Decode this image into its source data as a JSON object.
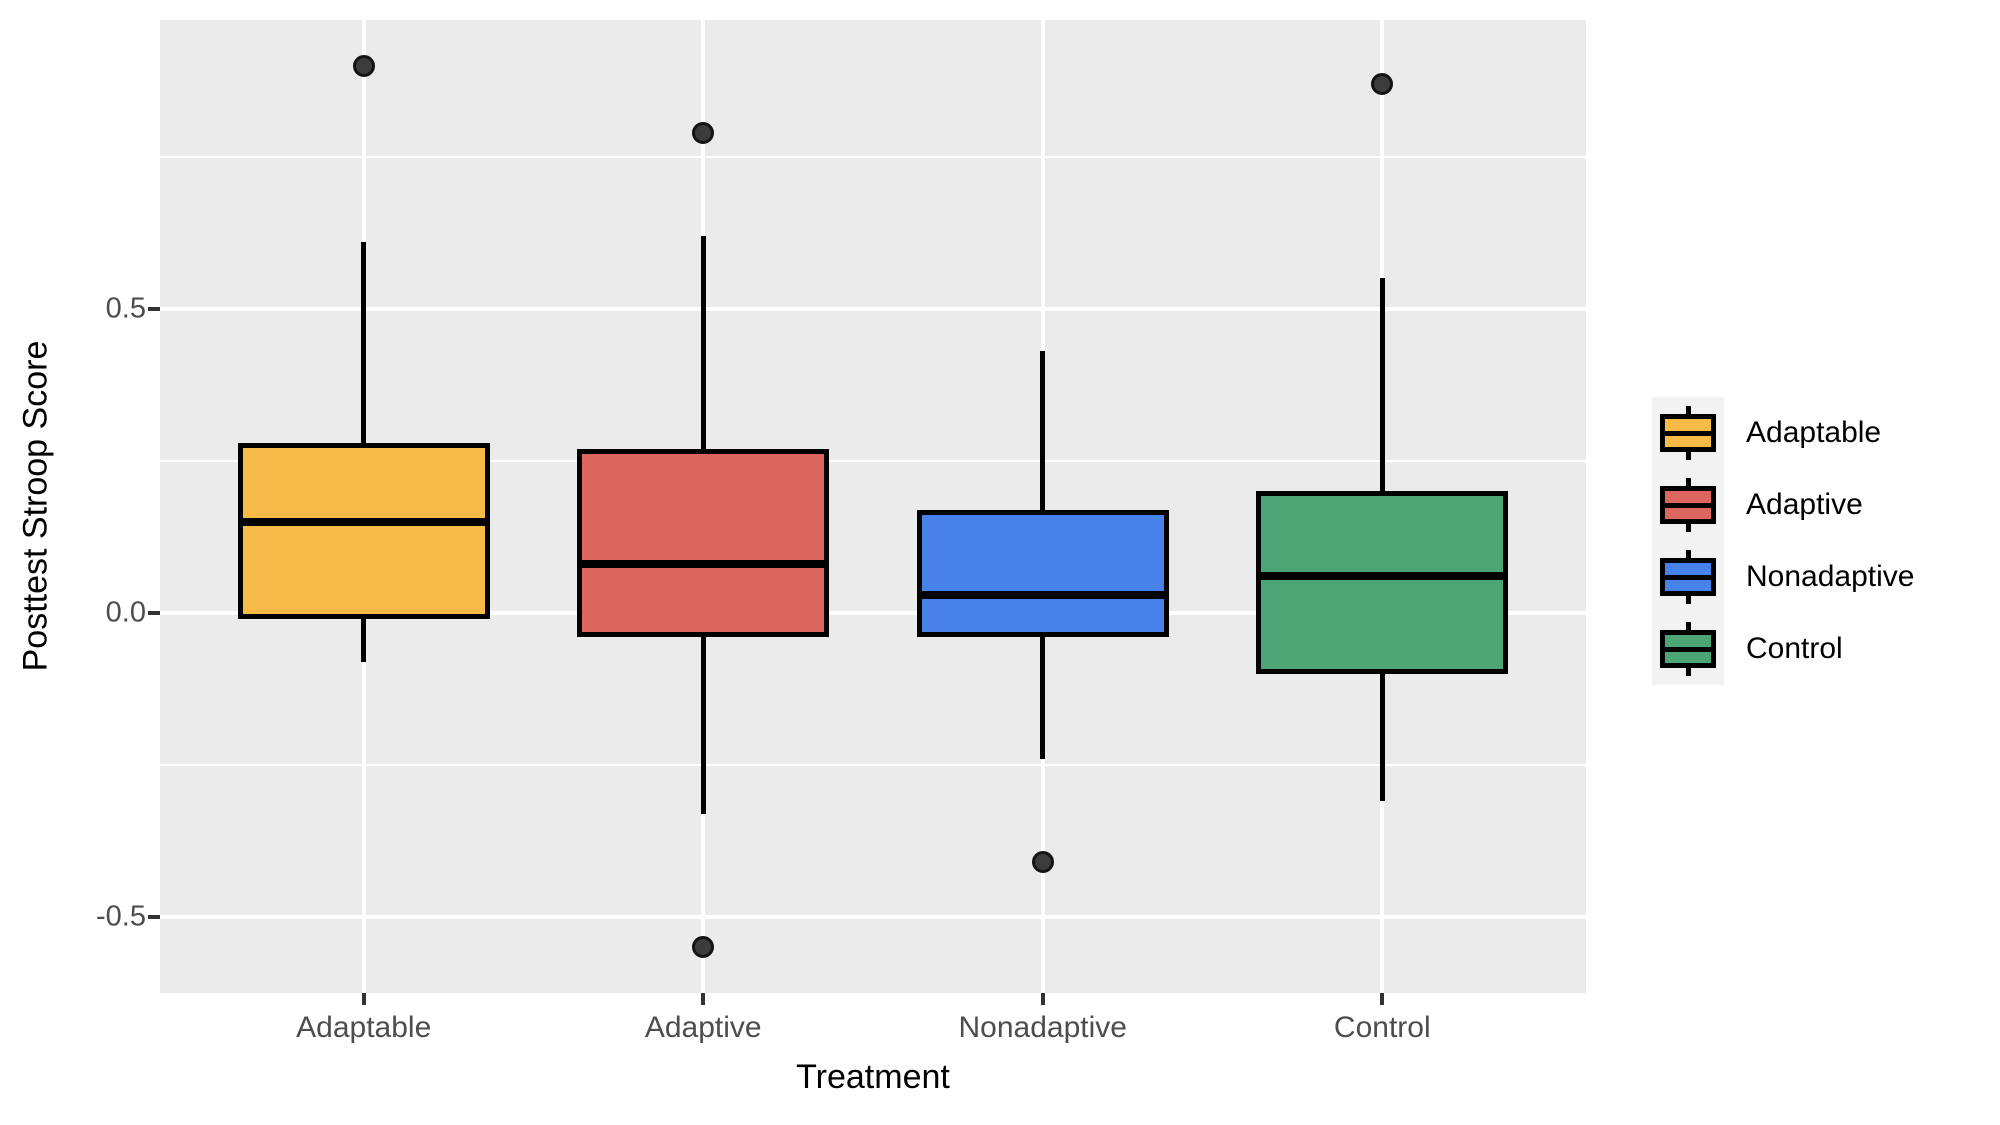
{
  "chart_data": {
    "type": "boxplot",
    "title": "",
    "xlabel": "Treatment",
    "ylabel": "Posttest Stroop Score",
    "categories": [
      "Adaptable",
      "Adaptive",
      "Nonadaptive",
      "Control"
    ],
    "groups": [
      {
        "label": "Adaptable",
        "color": "#F8BB48",
        "whisker_low": -0.08,
        "q1": -0.01,
        "median": 0.15,
        "q3": 0.28,
        "whisker_high": 0.61,
        "outliers": [
          0.9
        ]
      },
      {
        "label": "Adaptive",
        "color": "#DB665D",
        "whisker_low": -0.33,
        "q1": -0.04,
        "median": 0.08,
        "q3": 0.27,
        "whisker_high": 0.62,
        "outliers": [
          0.79,
          -0.55
        ]
      },
      {
        "label": "Nonadaptive",
        "color": "#4682E8",
        "whisker_low": -0.24,
        "q1": -0.04,
        "median": 0.03,
        "q3": 0.17,
        "whisker_high": 0.43,
        "outliers": [
          -0.41
        ]
      },
      {
        "label": "Control",
        "color": "#4DA474",
        "whisker_low": -0.31,
        "q1": -0.1,
        "median": 0.06,
        "q3": 0.2,
        "whisker_high": 0.55,
        "outliers": [
          0.87
        ]
      }
    ],
    "y_axis": {
      "min": -0.625,
      "max": 0.975,
      "major_ticks": [
        {
          "value": 0.5,
          "label": "0.5"
        },
        {
          "value": 0.0,
          "label": "0.0"
        },
        {
          "value": -0.5,
          "label": "-0.5"
        }
      ],
      "minor_gridlines": [
        0.75,
        0.25,
        -0.25
      ]
    },
    "legend": {
      "position": "right",
      "entries": [
        "Adaptable",
        "Adaptive",
        "Nonadaptive",
        "Control"
      ]
    },
    "grid": true,
    "style": {
      "panel_background": "#EBEBEB",
      "gridline_color": "#FFFFFF",
      "box_outline_color": "#000000",
      "outlier_color": "#3C3C3C",
      "tick_label_color": "#4D4D4D",
      "axis_title_color": "#000000",
      "legend_key_background": "#F2F2F2"
    }
  }
}
